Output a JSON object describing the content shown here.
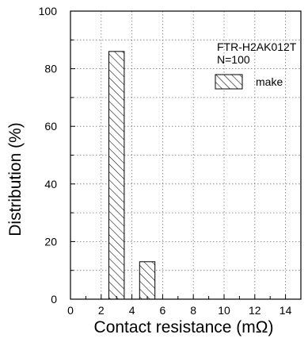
{
  "chart_data": {
    "type": "bar",
    "title": "",
    "xlabel": "Contact resistance (mΩ)",
    "ylabel": "Distribution (%)",
    "xlim": [
      0,
      15
    ],
    "ylim": [
      0,
      100
    ],
    "x_ticks": [
      "0",
      "2",
      "4",
      "6",
      "8",
      "10",
      "12",
      "14"
    ],
    "y_ticks": [
      "0",
      "20",
      "40",
      "60",
      "80",
      "100"
    ],
    "grid": true,
    "legend_position": "top-right",
    "annotations": [
      "FTR-H2AK012T",
      "N=100"
    ],
    "series": [
      {
        "name": "make",
        "pattern": "diagonal-hatch",
        "bars": [
          {
            "x_start": 2.5,
            "x_end": 3.5,
            "value": 86
          },
          {
            "x_start": 4.5,
            "x_end": 5.5,
            "value": 13
          }
        ]
      }
    ]
  }
}
